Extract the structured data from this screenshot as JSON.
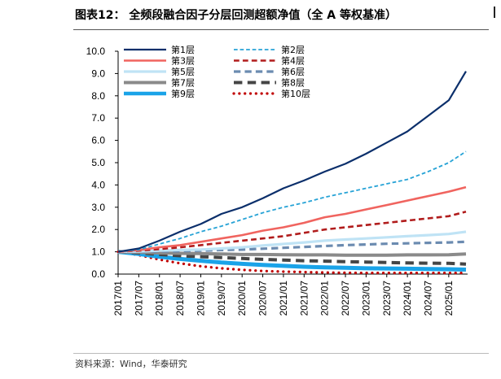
{
  "title": "图表12：  全频段融合因子分层回测超额净值（全 A 等权基准）",
  "source": "资料来源：Wind，华泰研究",
  "chart_data": {
    "type": "line",
    "title": "全频段融合因子分层回测超额净值（全 A 等权基准）",
    "ylim": [
      0,
      10
    ],
    "yticks": [
      "0.0",
      "1.0",
      "2.0",
      "3.0",
      "4.0",
      "5.0",
      "6.0",
      "7.0",
      "8.0",
      "9.0",
      "10.0"
    ],
    "x_start": "2017-01",
    "x_end": "2025-06",
    "xticks": [
      "2017/01",
      "2017/07",
      "2018/01",
      "2018/07",
      "2019/01",
      "2019/07",
      "2020/01",
      "2020/07",
      "2021/01",
      "2021/07",
      "2022/01",
      "2022/07",
      "2023/01",
      "2023/07",
      "2024/01",
      "2024/07",
      "2025/01"
    ],
    "grid": false,
    "legend_position": "top-left",
    "x": [
      "2017-01",
      "2017-07",
      "2018-01",
      "2018-07",
      "2019-01",
      "2019-07",
      "2020-01",
      "2020-07",
      "2021-01",
      "2021-07",
      "2022-01",
      "2022-07",
      "2023-01",
      "2023-07",
      "2024-01",
      "2024-07",
      "2025-01",
      "2025-06"
    ],
    "series": [
      {
        "name": "第1层",
        "color": "#0b2f6b",
        "style": "solid",
        "width": 2.2,
        "values": [
          1.0,
          1.15,
          1.5,
          1.9,
          2.25,
          2.7,
          3.0,
          3.4,
          3.85,
          4.2,
          4.6,
          4.95,
          5.4,
          5.9,
          6.4,
          7.1,
          7.8,
          9.1
        ]
      },
      {
        "name": "第2层",
        "color": "#27a3d6",
        "style": "dashed",
        "width": 1.8,
        "values": [
          1.0,
          1.1,
          1.35,
          1.6,
          1.9,
          2.15,
          2.45,
          2.75,
          3.0,
          3.2,
          3.45,
          3.65,
          3.85,
          4.05,
          4.25,
          4.6,
          5.0,
          5.5
        ]
      },
      {
        "name": "第3层",
        "color": "#f0645f",
        "style": "solid",
        "width": 2.6,
        "values": [
          1.0,
          1.08,
          1.2,
          1.3,
          1.45,
          1.6,
          1.75,
          1.95,
          2.1,
          2.3,
          2.55,
          2.7,
          2.9,
          3.1,
          3.3,
          3.5,
          3.7,
          3.9
        ]
      },
      {
        "name": "第4层",
        "color": "#b11c1c",
        "style": "dashed",
        "width": 2.6,
        "values": [
          1.0,
          1.05,
          1.12,
          1.2,
          1.3,
          1.4,
          1.5,
          1.6,
          1.7,
          1.85,
          2.0,
          2.1,
          2.2,
          2.3,
          2.4,
          2.5,
          2.6,
          2.8
        ]
      },
      {
        "name": "第5层",
        "color": "#bfe3f5",
        "style": "solid",
        "width": 3.2,
        "values": [
          1.0,
          1.02,
          1.05,
          1.08,
          1.1,
          1.15,
          1.2,
          1.28,
          1.35,
          1.42,
          1.5,
          1.55,
          1.6,
          1.65,
          1.7,
          1.75,
          1.8,
          1.9
        ]
      },
      {
        "name": "第6层",
        "color": "#6b8bb0",
        "style": "dashed",
        "width": 3.2,
        "values": [
          1.0,
          1.0,
          1.02,
          1.03,
          1.05,
          1.08,
          1.1,
          1.14,
          1.18,
          1.22,
          1.26,
          1.3,
          1.33,
          1.36,
          1.38,
          1.4,
          1.42,
          1.45
        ]
      },
      {
        "name": "第7层",
        "color": "#8a8a8a",
        "style": "solid",
        "width": 4,
        "values": [
          1.0,
          0.98,
          0.95,
          0.93,
          0.92,
          0.9,
          0.88,
          0.88,
          0.87,
          0.86,
          0.86,
          0.85,
          0.85,
          0.85,
          0.86,
          0.86,
          0.87,
          0.9
        ]
      },
      {
        "name": "第8层",
        "color": "#454545",
        "style": "dashed",
        "width": 4,
        "values": [
          1.0,
          0.95,
          0.88,
          0.82,
          0.78,
          0.74,
          0.7,
          0.66,
          0.63,
          0.6,
          0.58,
          0.56,
          0.54,
          0.52,
          0.5,
          0.49,
          0.48,
          0.45
        ]
      },
      {
        "name": "第9层",
        "color": "#1aa3e8",
        "style": "solid",
        "width": 5,
        "values": [
          1.0,
          0.9,
          0.78,
          0.68,
          0.6,
          0.52,
          0.46,
          0.41,
          0.37,
          0.33,
          0.3,
          0.28,
          0.26,
          0.25,
          0.24,
          0.23,
          0.22,
          0.2
        ]
      },
      {
        "name": "第10层",
        "color": "#c00000",
        "style": "dotted",
        "width": 3.2,
        "values": [
          1.0,
          0.85,
          0.65,
          0.48,
          0.35,
          0.26,
          0.19,
          0.14,
          0.11,
          0.09,
          0.07,
          0.06,
          0.05,
          0.05,
          0.05,
          0.05,
          0.05,
          0.05
        ]
      }
    ]
  }
}
